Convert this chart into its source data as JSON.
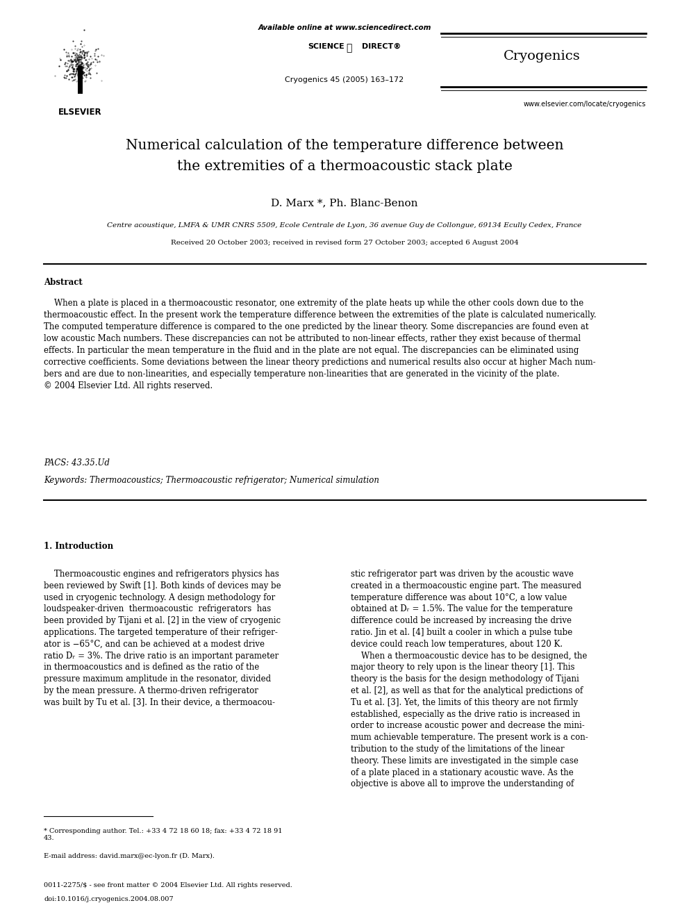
{
  "background_color": "#ffffff",
  "page_width": 9.92,
  "page_height": 13.23,
  "dpi": 100,
  "header": {
    "available_online": "Available online at www.sciencedirect.com",
    "sciencedirect": "scienceⓓdirect®",
    "journal_ref": "Cryogenics 45 (2005) 163–172",
    "website": "www.elsevier.com/locate/cryogenics",
    "journal_name": "Cryogenics"
  },
  "title_line1": "Numerical calculation of the temperature difference between",
  "title_line2": "the extremities of a thermoacoustic stack plate",
  "authors": "D. Marx *, Ph. Blanc-Benon",
  "affiliation": "Centre acoustique, LMFA & UMR CNRS 5509, Ecole Centrale de Lyon, 36 avenue Guy de Collongue, 69134 Ecully Cedex, France",
  "received": "Received 20 October 2003; received in revised form 27 October 2003; accepted 6 August 2004",
  "abstract_title": "Abstract",
  "abstract_text": "    When a plate is placed in a thermoacoustic resonator, one extremity of the plate heats up while the other cools down due to the\nthermoacoustic effect. In the present work the temperature difference between the extremities of the plate is calculated numerically.\nThe computed temperature difference is compared to the one predicted by the linear theory. Some discrepancies are found even at\nlow acoustic Mach numbers. These discrepancies can not be attributed to non-linear effects, rather they exist because of thermal\neffects. In particular the mean temperature in the fluid and in the plate are not equal. The discrepancies can be eliminated using\ncorrective coefficients. Some deviations between the linear theory predictions and numerical results also occur at higher Mach num-\nbers and are due to non-linearities, and especially temperature non-linearities that are generated in the vicinity of the plate.\n© 2004 Elsevier Ltd. All rights reserved.",
  "pacs": "PACS: 43.35.Ud",
  "keywords": "Keywords: Thermoacoustics; Thermoacoustic refrigerator; Numerical simulation",
  "section1_title": "1. Introduction",
  "section1_left": "    Thermoacoustic engines and refrigerators physics has\nbeen reviewed by Swift [1]. Both kinds of devices may be\nused in cryogenic technology. A design methodology for\nloudspeaker-driven  thermoacoustic  refrigerators  has\nbeen provided by Tijani et al. [2] in the view of cryogenic\napplications. The targeted temperature of their refriger-\nator is −65°C, and can be achieved at a modest drive\nratio Dᵣ = 3%. The drive ratio is an important parameter\nin thermoacoustics and is defined as the ratio of the\npressure maximum amplitude in the resonator, divided\nby the mean pressure. A thermo-driven refrigerator\nwas built by Tu et al. [3]. In their device, a thermoacou-",
  "section1_right": "stic refrigerator part was driven by the acoustic wave\ncreated in a thermoacoustic engine part. The measured\ntemperature difference was about 10°C, a low value\nobtained at Dᵣ = 1.5%. The value for the temperature\ndifference could be increased by increasing the drive\nratio. Jin et al. [4] built a cooler in which a pulse tube\ndevice could reach low temperatures, about 120 K.\n    When a thermoacoustic device has to be designed, the\nmajor theory to rely upon is the linear theory [1]. This\ntheory is the basis for the design methodology of Tijani\net al. [2], as well as that for the analytical predictions of\nTu et al. [3]. Yet, the limits of this theory are not firmly\nestablished, especially as the drive ratio is increased in\norder to increase acoustic power and decrease the mini-\nmum achievable temperature. The present work is a con-\ntribution to the study of the limitations of the linear\ntheory. These limits are investigated in the simple case\nof a plate placed in a stationary acoustic wave. As the\nobjective is above all to improve the understanding of",
  "footnote_line": "* Corresponding author. Tel.: +33 4 72 18 60 18; fax: +33 4 72 18 91\n43.",
  "footnote_email": "E-mail address: david.marx@ec-lyon.fr (D. Marx).",
  "bottom_copyright": "0011-2275/$ - see front matter © 2004 Elsevier Ltd. All rights reserved.",
  "bottom_doi": "doi:10.1016/j.cryogenics.2004.08.007"
}
